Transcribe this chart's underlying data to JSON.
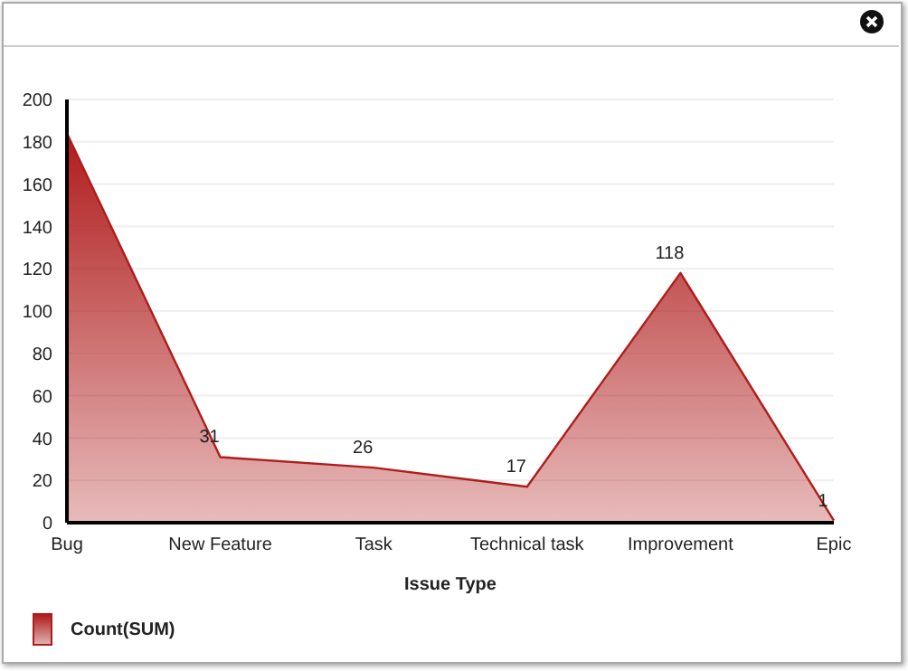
{
  "chart_data": {
    "type": "area",
    "xlabel": "Issue Type",
    "categories": [
      "Bug",
      "New Feature",
      "Task",
      "Technical task",
      "Improvement",
      "Epic"
    ],
    "series": [
      {
        "name": "Count(SUM)",
        "color": "#b01c1c",
        "values": [
          184,
          31,
          26,
          17,
          118,
          1
        ],
        "value_labels": [
          null,
          "31",
          "26",
          "17",
          "118",
          "1"
        ]
      }
    ],
    "ylim": [
      0,
      200
    ],
    "yticks": [
      0,
      20,
      40,
      60,
      80,
      100,
      120,
      140,
      160,
      180,
      200
    ],
    "grid": "y",
    "legend": "bottom left",
    "marker": "none"
  }
}
